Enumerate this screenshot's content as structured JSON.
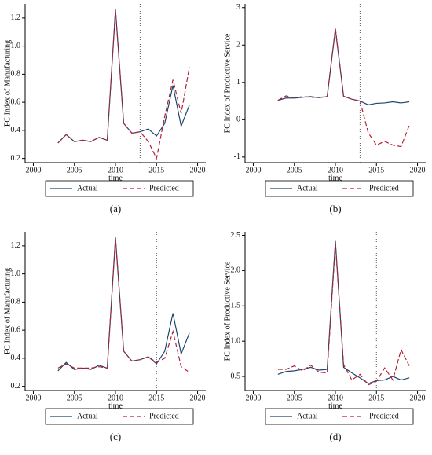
{
  "chart_data": [
    {
      "type": "line",
      "caption": "(a)",
      "xlabel": "time",
      "ylabel": "FC Index of Manufacturing",
      "x": [
        2003,
        2004,
        2005,
        2006,
        2007,
        2008,
        2009,
        2010,
        2011,
        2012,
        2013,
        2014,
        2015,
        2016,
        2017,
        2018,
        2019
      ],
      "series": [
        {
          "name": "Actual",
          "color": "#1a476f",
          "dash": false,
          "values": [
            0.31,
            0.37,
            0.32,
            0.33,
            0.32,
            0.35,
            0.33,
            1.26,
            0.45,
            0.38,
            0.39,
            0.41,
            0.36,
            0.45,
            0.72,
            0.43,
            0.58
          ]
        },
        {
          "name": "Predicted",
          "color": "#b22234",
          "dash": true,
          "values": [
            0.31,
            0.37,
            0.32,
            0.33,
            0.32,
            0.35,
            0.33,
            1.26,
            0.45,
            0.38,
            0.39,
            0.32,
            0.2,
            0.5,
            0.76,
            0.52,
            0.85
          ]
        }
      ],
      "vline": 2013,
      "xlim": [
        1999,
        2021
      ],
      "xticks": [
        2000,
        2005,
        2010,
        2015,
        2020
      ],
      "ylim": [
        0.17,
        1.3
      ],
      "yticks": [
        0.2,
        0.4,
        0.6,
        0.8,
        {
          "value": 1,
          "label": "1.0"
        },
        1.2
      ]
    },
    {
      "type": "line",
      "caption": "(b)",
      "xlabel": "time",
      "ylabel": "FC Index of Productive Service",
      "x": [
        2003,
        2004,
        2005,
        2006,
        2007,
        2008,
        2009,
        2010,
        2011,
        2012,
        2013,
        2014,
        2015,
        2016,
        2017,
        2018,
        2019
      ],
      "series": [
        {
          "name": "Actual",
          "color": "#1a476f",
          "dash": false,
          "values": [
            0.52,
            0.58,
            0.58,
            0.6,
            0.62,
            0.59,
            0.62,
            2.42,
            0.63,
            0.55,
            0.5,
            0.4,
            0.44,
            0.45,
            0.48,
            0.45,
            0.48
          ]
        },
        {
          "name": "Predicted",
          "color": "#b22234",
          "dash": true,
          "values": [
            0.52,
            0.64,
            0.58,
            0.62,
            0.6,
            0.6,
            0.62,
            2.45,
            0.63,
            0.55,
            0.5,
            -0.35,
            -0.68,
            -0.58,
            -0.68,
            -0.72,
            -0.15
          ]
        }
      ],
      "vline": 2013,
      "xlim": [
        1999,
        2021
      ],
      "xticks": [
        2000,
        2005,
        2010,
        2015,
        2020
      ],
      "ylim": [
        -1.15,
        3.1
      ],
      "yticks": [
        -1,
        0,
        1,
        2,
        3
      ]
    },
    {
      "type": "line",
      "caption": "(c)",
      "xlabel": "time",
      "ylabel": "FC Index of Manufacturing",
      "x": [
        2003,
        2004,
        2005,
        2006,
        2007,
        2008,
        2009,
        2010,
        2011,
        2012,
        2013,
        2014,
        2015,
        2016,
        2017,
        2018,
        2019
      ],
      "series": [
        {
          "name": "Actual",
          "color": "#1a476f",
          "dash": false,
          "values": [
            0.31,
            0.37,
            0.32,
            0.33,
            0.32,
            0.35,
            0.33,
            1.26,
            0.45,
            0.38,
            0.39,
            0.41,
            0.36,
            0.45,
            0.72,
            0.43,
            0.58
          ]
        },
        {
          "name": "Predicted",
          "color": "#b22234",
          "dash": true,
          "values": [
            0.33,
            0.36,
            0.33,
            0.33,
            0.33,
            0.34,
            0.33,
            1.25,
            0.45,
            0.38,
            0.39,
            0.41,
            0.37,
            0.4,
            0.59,
            0.34,
            0.3
          ]
        }
      ],
      "vline": 2015,
      "xlim": [
        1999,
        2021
      ],
      "xticks": [
        2000,
        2005,
        2010,
        2015,
        2020
      ],
      "ylim": [
        0.17,
        1.3
      ],
      "yticks": [
        0.2,
        0.4,
        0.6,
        0.8,
        {
          "value": 1,
          "label": "1.0"
        },
        1.2
      ]
    },
    {
      "type": "line",
      "caption": "(d)",
      "xlabel": "time",
      "ylabel": "FC Index of Productive Service",
      "x": [
        2003,
        2004,
        2005,
        2006,
        2007,
        2008,
        2009,
        2010,
        2011,
        2012,
        2013,
        2014,
        2015,
        2016,
        2017,
        2018,
        2019
      ],
      "series": [
        {
          "name": "Actual",
          "color": "#1a476f",
          "dash": false,
          "values": [
            0.53,
            0.57,
            0.58,
            0.6,
            0.63,
            0.59,
            0.6,
            2.42,
            0.63,
            0.55,
            0.48,
            0.4,
            0.44,
            0.45,
            0.5,
            0.45,
            0.48
          ]
        },
        {
          "name": "Predicted",
          "color": "#b22234",
          "dash": true,
          "values": [
            0.6,
            0.6,
            0.65,
            0.58,
            0.66,
            0.56,
            0.55,
            2.38,
            0.67,
            0.45,
            0.53,
            0.38,
            0.43,
            0.62,
            0.45,
            0.88,
            0.65
          ]
        }
      ],
      "vline": 2015,
      "xlim": [
        1999,
        2021
      ],
      "xticks": [
        2000,
        2005,
        2010,
        2015,
        2020
      ],
      "ylim": [
        0.3,
        2.55
      ],
      "yticks": [
        0.5,
        {
          "value": 1,
          "label": "1.0"
        },
        1.5,
        {
          "value": 2,
          "label": "2.0"
        },
        2.5
      ]
    }
  ]
}
